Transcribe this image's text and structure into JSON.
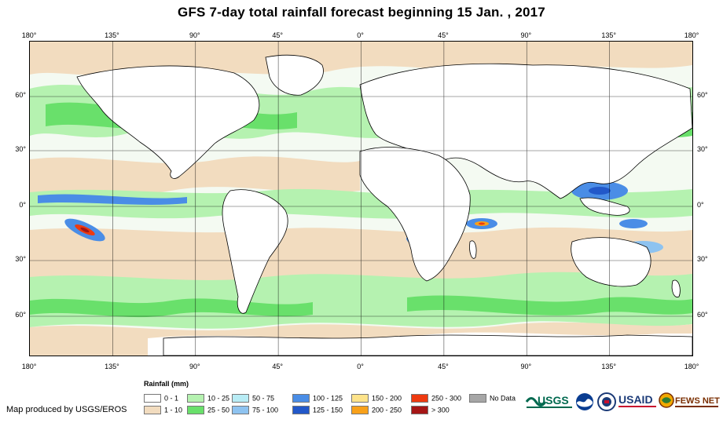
{
  "title": "GFS 7-day total rainfall forecast beginning 15 Jan. , 2017",
  "map": {
    "lon_labels": [
      "180°",
      "135°",
      "90°",
      "45°",
      "0°",
      "45°",
      "90°",
      "135°",
      "180°"
    ],
    "lat_labels": [
      "60°",
      "30°",
      "0°",
      "30°",
      "60°"
    ],
    "ocean_color": "#f0f6f0"
  },
  "legend": {
    "title": "Rainfall (mm)",
    "items": [
      {
        "label": "0 - 1",
        "color": "#ffffff"
      },
      {
        "label": "1 - 10",
        "color": "#f2dcbf"
      },
      {
        "label": "10 - 25",
        "color": "#b5f2b0"
      },
      {
        "label": "25 - 50",
        "color": "#69e06b"
      },
      {
        "label": "50 - 75",
        "color": "#b8ecf5"
      },
      {
        "label": "75 - 100",
        "color": "#8ec3f0"
      },
      {
        "label": "100 - 125",
        "color": "#4a8de6"
      },
      {
        "label": "125 - 150",
        "color": "#2258c9"
      },
      {
        "label": "150 - 200",
        "color": "#fde38a"
      },
      {
        "label": "200 - 250",
        "color": "#f8a11a"
      },
      {
        "label": "250 - 300",
        "color": "#ee3a10"
      },
      {
        "label": "> 300",
        "color": "#a51616"
      },
      {
        "label": "No Data",
        "color": "#a6a6a6"
      }
    ]
  },
  "credit": "Map produced by USGS/EROS",
  "logos": [
    {
      "icon": "usgs-logo",
      "text": "USGS"
    },
    {
      "icon": "noaa-logo"
    },
    {
      "icon": "usaid-seal"
    },
    {
      "icon": "usaid-logo",
      "text": "USAID"
    },
    {
      "icon": "fews-net-logo",
      "text": "FEWS NET"
    }
  ]
}
